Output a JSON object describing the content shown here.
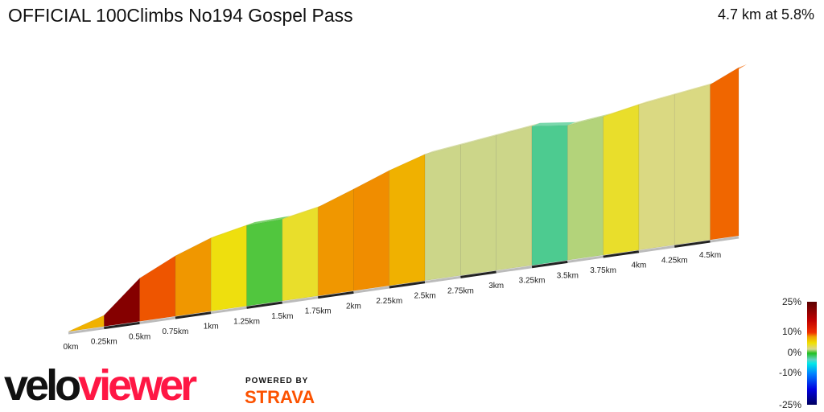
{
  "header": {
    "title": "OFFICIAL 100Climbs No194 Gospel Pass",
    "summary": "4.7 km at 5.8%"
  },
  "legend": {
    "labels": [
      "25%",
      "10%",
      "0%",
      "-10%",
      "-25%"
    ]
  },
  "branding": {
    "logo_part1": "velo",
    "logo_part2": "viewer",
    "powered_by": "POWERED BY",
    "strava": "STRAVA"
  },
  "chart_data": {
    "type": "area",
    "title": "",
    "xlabel": "",
    "ylabel": "",
    "x_unit": "km",
    "xlim": [
      0,
      4.7
    ],
    "tick_labels": [
      "0km",
      "0.25km",
      "0.5km",
      "0.75km",
      "1km",
      "1.25km",
      "1.5km",
      "1.75km",
      "2km",
      "2.25km",
      "2.5km",
      "2.75km",
      "3km",
      "3.25km",
      "3.5km",
      "3.75km",
      "4km",
      "4.25km",
      "4.5km"
    ],
    "distance_km": [
      0,
      0.25,
      0.5,
      0.75,
      1.0,
      1.25,
      1.5,
      1.75,
      2.0,
      2.25,
      2.5,
      2.75,
      3.0,
      3.25,
      3.5,
      3.75,
      4.0,
      4.25,
      4.5,
      4.7
    ],
    "relative_elevation_m": [
      0,
      18,
      70,
      98,
      119,
      131,
      133,
      144,
      165,
      187,
      205,
      212,
      219,
      226,
      219,
      225,
      236,
      244,
      252,
      273
    ],
    "color_scale": {
      "min_pct": -25,
      "max_pct": 25,
      "ticks": [
        25,
        10,
        0,
        -10,
        -25
      ]
    },
    "colors": {
      "steep": "#c00000",
      "hard": "#f07800",
      "moderate": "#f0e000",
      "flat": "#20c020",
      "descent": "#00e8e8"
    }
  }
}
